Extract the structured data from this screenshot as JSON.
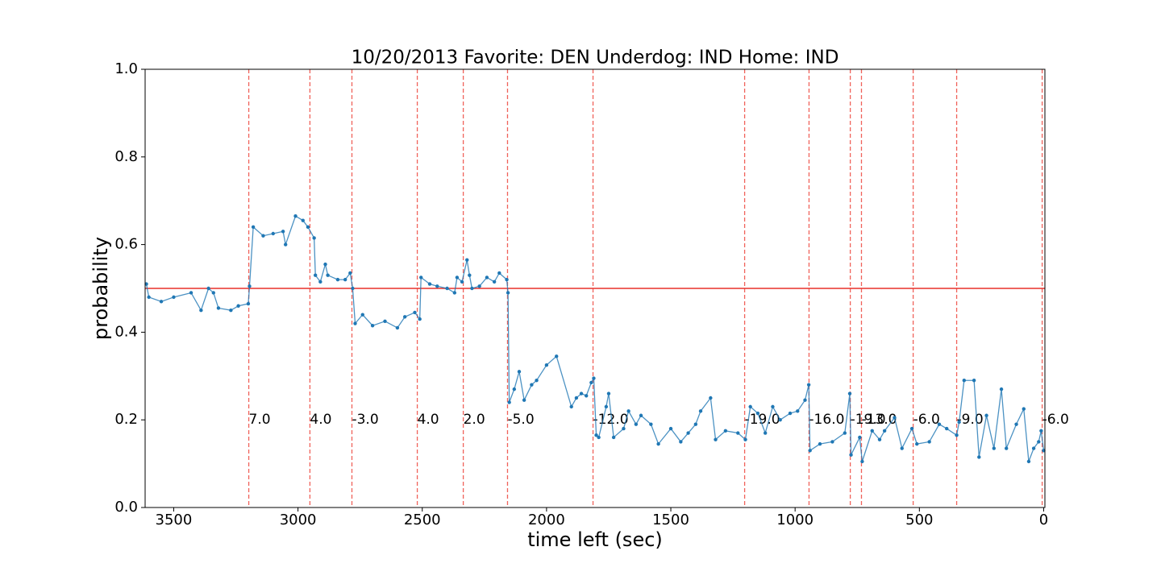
{
  "chart_data": {
    "type": "line",
    "title": "10/20/2013 Favorite: DEN Underdog: IND Home: IND",
    "xlabel": "time left (sec)",
    "ylabel": "probability",
    "x": [
      3610,
      3600,
      3550,
      3500,
      3430,
      3390,
      3360,
      3340,
      3320,
      3270,
      3240,
      3200,
      3195,
      3180,
      3140,
      3100,
      3060,
      3050,
      3010,
      2980,
      2960,
      2935,
      2930,
      2910,
      2890,
      2880,
      2840,
      2810,
      2790,
      2780,
      2770,
      2740,
      2700,
      2650,
      2600,
      2570,
      2530,
      2510,
      2505,
      2470,
      2440,
      2400,
      2370,
      2360,
      2340,
      2320,
      2310,
      2300,
      2270,
      2240,
      2210,
      2190,
      2160,
      2155,
      2150,
      2130,
      2110,
      2090,
      2060,
      2040,
      2000,
      1960,
      1900,
      1880,
      1860,
      1840,
      1820,
      1810,
      1800,
      1790,
      1760,
      1750,
      1730,
      1690,
      1670,
      1640,
      1620,
      1580,
      1550,
      1500,
      1460,
      1430,
      1400,
      1380,
      1340,
      1320,
      1280,
      1230,
      1200,
      1180,
      1150,
      1120,
      1090,
      1060,
      1020,
      990,
      960,
      945,
      940,
      900,
      850,
      800,
      780,
      775,
      740,
      730,
      690,
      660,
      640,
      600,
      570,
      530,
      510,
      460,
      420,
      390,
      350,
      340,
      320,
      280,
      260,
      230,
      200,
      170,
      150,
      110,
      80,
      60,
      40,
      20,
      10,
      0
    ],
    "series": [
      {
        "color": "#1f77b4",
        "values": [
          0.51,
          0.48,
          0.47,
          0.48,
          0.49,
          0.45,
          0.5,
          0.49,
          0.455,
          0.45,
          0.46,
          0.465,
          0.505,
          0.64,
          0.62,
          0.625,
          0.63,
          0.6,
          0.665,
          0.655,
          0.64,
          0.615,
          0.53,
          0.515,
          0.555,
          0.53,
          0.52,
          0.52,
          0.535,
          0.5,
          0.42,
          0.44,
          0.415,
          0.425,
          0.41,
          0.435,
          0.445,
          0.43,
          0.525,
          0.51,
          0.505,
          0.5,
          0.49,
          0.525,
          0.515,
          0.565,
          0.53,
          0.5,
          0.505,
          0.525,
          0.515,
          0.535,
          0.52,
          0.49,
          0.24,
          0.27,
          0.31,
          0.245,
          0.28,
          0.29,
          0.325,
          0.345,
          0.23,
          0.25,
          0.26,
          0.255,
          0.285,
          0.295,
          0.165,
          0.16,
          0.23,
          0.26,
          0.16,
          0.18,
          0.22,
          0.19,
          0.21,
          0.19,
          0.145,
          0.18,
          0.15,
          0.17,
          0.19,
          0.22,
          0.25,
          0.155,
          0.175,
          0.17,
          0.155,
          0.23,
          0.215,
          0.17,
          0.23,
          0.2,
          0.215,
          0.22,
          0.245,
          0.28,
          0.13,
          0.145,
          0.15,
          0.17,
          0.26,
          0.12,
          0.16,
          0.105,
          0.175,
          0.155,
          0.175,
          0.205,
          0.135,
          0.18,
          0.145,
          0.15,
          0.19,
          0.18,
          0.165,
          0.195,
          0.29,
          0.29,
          0.115,
          0.21,
          0.135,
          0.27,
          0.135,
          0.19,
          0.225,
          0.105,
          0.135,
          0.15,
          0.175,
          0.13
        ]
      }
    ],
    "xlim": [
      3615,
      -5
    ],
    "ylim": [
      0,
      1
    ],
    "xticks": [
      3500,
      3000,
      2500,
      2000,
      1500,
      1000,
      500,
      0
    ],
    "yticks": [
      {
        "value": 0,
        "label": "0.0"
      },
      {
        "value": 0.2,
        "label": "0.2"
      },
      {
        "value": 0.4,
        "label": "0.4"
      },
      {
        "value": 0.6,
        "label": "0.6"
      },
      {
        "value": 0.8,
        "label": "0.8"
      },
      {
        "value": 1,
        "label": "1.0"
      }
    ],
    "reference_line": {
      "y": 0.5,
      "color": "#e8312a"
    },
    "events": {
      "color": "#f0625a",
      "label_y": 0.2,
      "x": [
        3198,
        2952,
        2783,
        2520,
        2335,
        2157,
        1813,
        1203,
        944,
        778,
        733,
        525,
        350,
        6
      ],
      "labels": [
        "7.0",
        "4.0",
        "-3.0",
        "4.0",
        "2.0",
        "-5.0",
        "-12.0",
        "-19.0",
        "-16.0",
        "-19.0",
        "-13.0",
        "-6.0",
        "-9.0",
        "-6.0"
      ]
    }
  }
}
